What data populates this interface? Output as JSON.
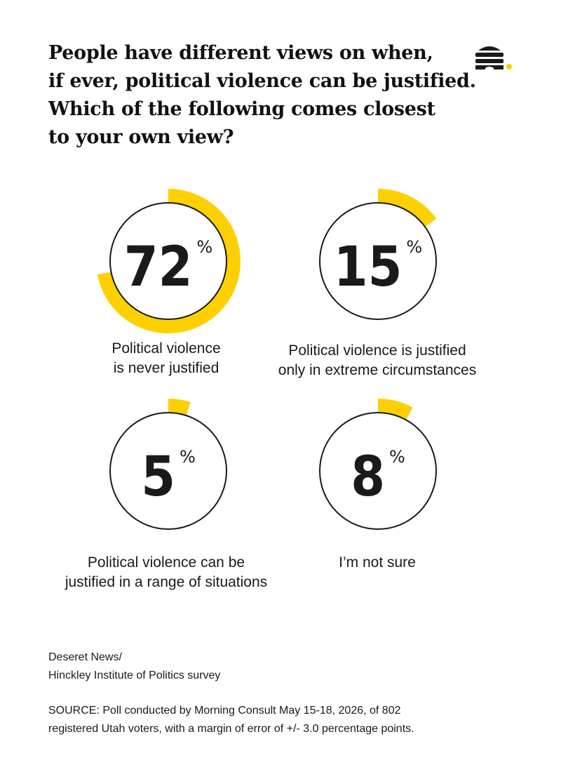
{
  "title_lines": [
    "People have different views on when,",
    "if ever, political violence can be justified.",
    "Which of the following comes closest",
    "to your own view?"
  ],
  "colors": {
    "accent": "#ffd000",
    "ink": "#1a1a1a",
    "background": "#ffffff"
  },
  "logo": {
    "icon": "beehive-icon"
  },
  "chart_data": {
    "type": "pie",
    "unit": "%",
    "categories": [
      "Political violence is never justified",
      "Political violence is justified only in extreme circumstances",
      "Political violence can be justified in a range of situations",
      "I’m not sure"
    ],
    "values": [
      72,
      15,
      5,
      8
    ],
    "items": [
      {
        "value": 72,
        "display": "72",
        "unit": "%",
        "label_lines": [
          "Political violence",
          "is never justified"
        ]
      },
      {
        "value": 15,
        "display": "15",
        "unit": "%",
        "label_lines": [
          "Political violence is justified",
          "only in extreme circumstances"
        ]
      },
      {
        "value": 5,
        "display": "5",
        "unit": "%",
        "label_lines": [
          "Political violence can be",
          "justified in a range of situations"
        ]
      },
      {
        "value": 8,
        "display": "8",
        "unit": "%",
        "label_lines": [
          "I’m not sure"
        ]
      }
    ]
  },
  "credit_lines": [
    "Deseret News/",
    "Hinckley Institute of Politics survey"
  ],
  "source_lines": [
    "SOURCE: Poll conducted by Morning Consult May 15-18, 2026, of 802",
    "registered Utah voters, with a margin of error of +/- 3.0 percentage points."
  ]
}
